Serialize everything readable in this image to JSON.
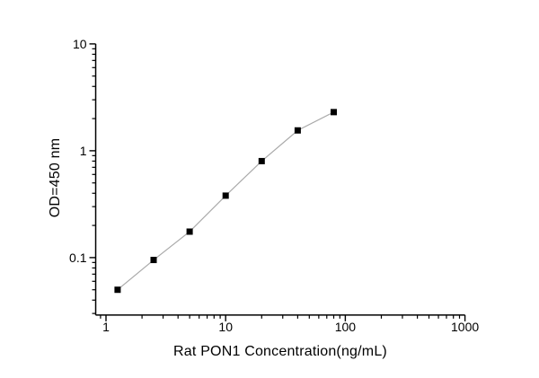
{
  "figure": {
    "background": "#ffffff"
  },
  "chart_data": {
    "type": "line",
    "subtype": "standard-curve-scatter-with-line",
    "title": "",
    "xlabel": "Rat PON1 Concentration(ng/mL)",
    "ylabel": "OD=450 nm",
    "x_scale": "log",
    "y_scale": "log",
    "x": [
      1.25,
      2.5,
      5,
      10,
      20,
      40,
      80
    ],
    "y": [
      0.05,
      0.095,
      0.175,
      0.38,
      0.8,
      1.55,
      2.3
    ],
    "x_ticks": [
      1,
      10,
      100,
      1000
    ],
    "x_tick_labels": [
      "1",
      "10",
      "100",
      "1000"
    ],
    "y_ticks": [
      0.1,
      1,
      10
    ],
    "y_tick_labels": [
      "0.1",
      "1",
      "10"
    ],
    "xlim": [
      0.82,
      1000
    ],
    "ylim": [
      0.029,
      10
    ],
    "grid": false,
    "legend": "none",
    "marker": "filled-square",
    "colors": {
      "marker": "#000000",
      "line": "#a9a9a9",
      "axis": "#000000",
      "text": "#000000"
    }
  }
}
